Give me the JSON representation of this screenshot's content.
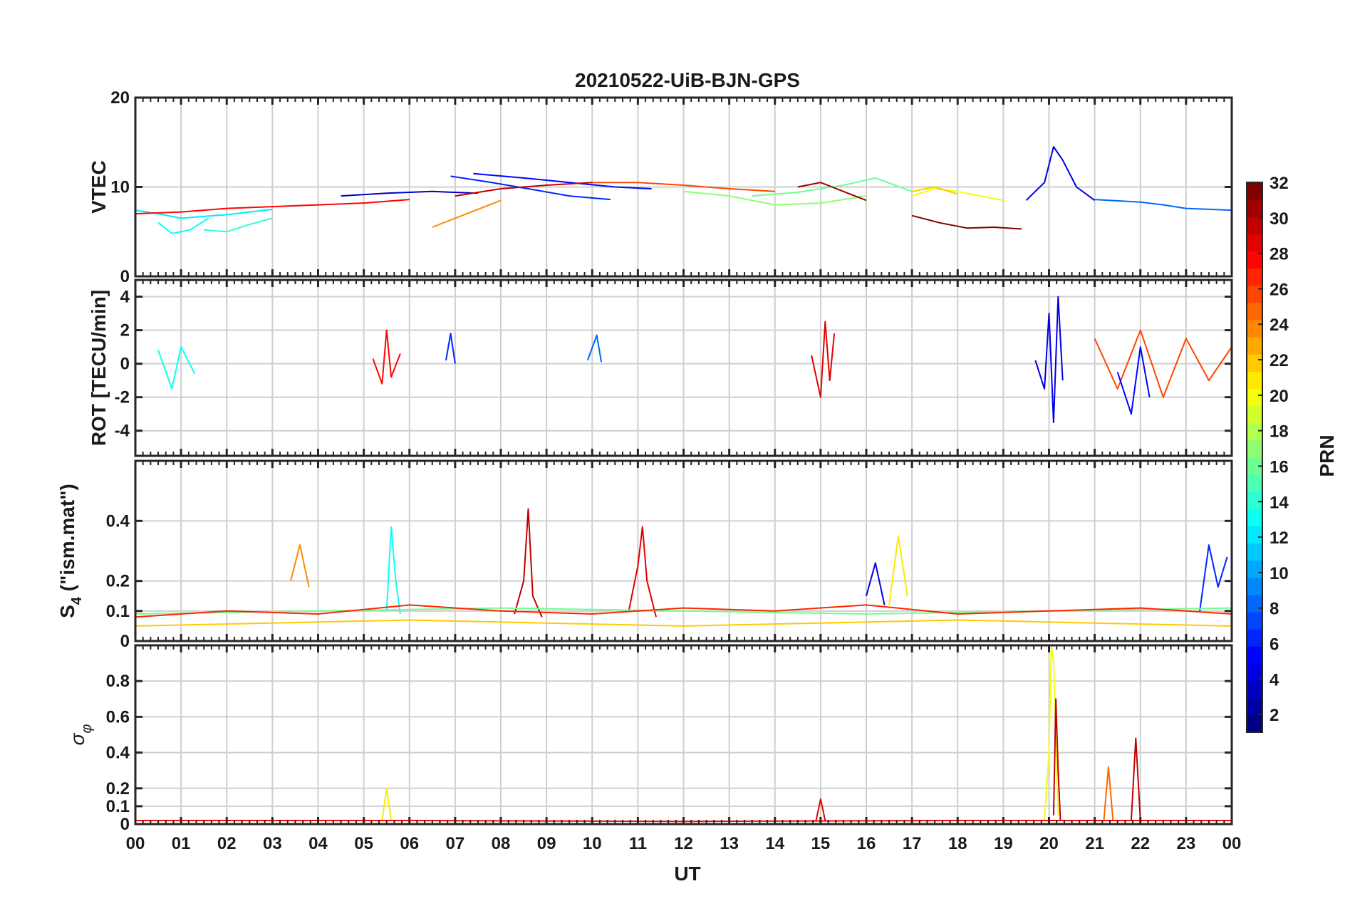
{
  "chart_data": [
    {
      "type": "line",
      "panel": "vtec",
      "title": "20210522-UiB-BJN-GPS",
      "ylabel": "VTEC",
      "ylim": [
        0,
        20
      ],
      "yticks": [
        {
          "v": 0,
          "label": "0"
        },
        {
          "v": 10,
          "label": "10"
        },
        {
          "v": 20,
          "label": "20"
        }
      ],
      "series": [
        {
          "prn": 3,
          "x": [
            4.5,
            5.5,
            6.5,
            7.5
          ],
          "y": [
            9.0,
            9.3,
            9.5,
            9.3
          ]
        },
        {
          "prn": 5,
          "x": [
            7.4,
            8.5,
            9.5,
            10.5,
            11.3
          ],
          "y": [
            11.5,
            11.0,
            10.5,
            10.0,
            9.8
          ]
        },
        {
          "prn": 6,
          "x": [
            6.9,
            7.8,
            8.6,
            9.5,
            10.4
          ],
          "y": [
            11.2,
            10.5,
            9.8,
            9.0,
            8.6
          ]
        },
        {
          "prn": 4,
          "x": [
            19.5,
            19.9,
            20.1,
            20.3,
            20.6,
            21.0
          ],
          "y": [
            8.5,
            10.5,
            14.5,
            13.0,
            10.0,
            8.5
          ]
        },
        {
          "prn": 8,
          "x": [
            21.0,
            22.0,
            22.5,
            23.0,
            24.0
          ],
          "y": [
            8.6,
            8.3,
            8.0,
            7.6,
            7.4
          ]
        },
        {
          "prn": 12,
          "x": [
            0.0,
            0.5,
            1.0,
            2.0,
            3.0
          ],
          "y": [
            7.4,
            7.0,
            6.5,
            6.9,
            7.5
          ]
        },
        {
          "prn": 13,
          "x": [
            0.5,
            0.8,
            1.2,
            1.6
          ],
          "y": [
            6.0,
            4.8,
            5.2,
            6.5
          ]
        },
        {
          "prn": 14,
          "x": [
            1.5,
            2.0,
            2.5,
            3.0
          ],
          "y": [
            5.2,
            5.0,
            5.8,
            6.5
          ]
        },
        {
          "prn": 16,
          "x": [
            13.5,
            14.5,
            15.5,
            16.2,
            17.0
          ],
          "y": [
            9.0,
            9.4,
            10.2,
            11.0,
            9.5
          ]
        },
        {
          "prn": 17,
          "x": [
            12.0,
            13.0,
            14.0,
            15.0,
            16.0
          ],
          "y": [
            9.5,
            9.0,
            8.0,
            8.2,
            9.0
          ]
        },
        {
          "prn": 20,
          "x": [
            17.0,
            17.5,
            18.0,
            18.5,
            19.0
          ],
          "y": [
            9.0,
            9.8,
            9.5,
            9.0,
            8.5
          ]
        },
        {
          "prn": 22,
          "x": [
            17.0,
            17.5,
            18.0
          ],
          "y": [
            9.5,
            10.0,
            9.2
          ]
        },
        {
          "prn": 24,
          "x": [
            6.5,
            7.0,
            7.5,
            8.0
          ],
          "y": [
            5.5,
            6.5,
            7.5,
            8.5
          ]
        },
        {
          "prn": 26,
          "x": [
            10.0,
            11.0,
            12.0,
            13.0,
            14.0
          ],
          "y": [
            10.5,
            10.5,
            10.2,
            9.8,
            9.5
          ]
        },
        {
          "prn": 28,
          "x": [
            0.0,
            1.0,
            2.0,
            3.0,
            4.0,
            5.0,
            6.0
          ],
          "y": [
            7.0,
            7.2,
            7.6,
            7.8,
            8.0,
            8.2,
            8.6
          ]
        },
        {
          "prn": 30,
          "x": [
            7.0,
            8.0,
            9.0,
            10.0
          ],
          "y": [
            9.0,
            9.8,
            10.2,
            10.5
          ]
        },
        {
          "prn": 31,
          "x": [
            14.5,
            15.0,
            15.5,
            16.0
          ],
          "y": [
            10.0,
            10.5,
            9.5,
            8.5
          ]
        },
        {
          "prn": 32,
          "x": [
            17.0,
            17.6,
            18.2,
            18.8,
            19.4
          ],
          "y": [
            6.8,
            6.0,
            5.4,
            5.5,
            5.3
          ]
        }
      ]
    },
    {
      "type": "line",
      "panel": "rot",
      "ylabel": "ROT [TECU/min]",
      "ylim": [
        -5.5,
        5
      ],
      "yticks": [
        {
          "v": -4,
          "label": "-4"
        },
        {
          "v": -2,
          "label": "-2"
        },
        {
          "v": 0,
          "label": "0"
        },
        {
          "v": 2,
          "label": "2"
        },
        {
          "v": 4,
          "label": "4"
        }
      ],
      "series": [
        {
          "prn": 4,
          "x": [
            19.7,
            19.9,
            20.0,
            20.1,
            20.2,
            20.3
          ],
          "y": [
            0.2,
            -1.5,
            3.0,
            -3.5,
            4.0,
            -1.0
          ]
        },
        {
          "prn": 28,
          "x": [
            5.2,
            5.4,
            5.5,
            5.6,
            5.8
          ],
          "y": [
            0.3,
            -1.2,
            2.0,
            -0.8,
            0.6
          ]
        },
        {
          "prn": 6,
          "x": [
            6.8,
            6.9,
            7.0
          ],
          "y": [
            0.2,
            1.8,
            0.0
          ]
        },
        {
          "prn": 8,
          "x": [
            9.9,
            10.1,
            10.2
          ],
          "y": [
            0.2,
            1.7,
            0.1
          ]
        },
        {
          "prn": 29,
          "x": [
            14.8,
            15.0,
            15.1,
            15.2,
            15.3
          ],
          "y": [
            0.5,
            -2.0,
            2.5,
            -1.0,
            1.8
          ]
        },
        {
          "prn": 26,
          "x": [
            21.0,
            21.5,
            22.0,
            22.5,
            23.0,
            23.5,
            24.0
          ],
          "y": [
            1.5,
            -1.5,
            2.0,
            -2.0,
            1.5,
            -1.0,
            1.0
          ]
        },
        {
          "prn": 5,
          "x": [
            21.5,
            21.8,
            22.0,
            22.2
          ],
          "y": [
            -0.5,
            -3.0,
            1.0,
            -2.0
          ]
        },
        {
          "prn": 13,
          "x": [
            0.5,
            0.8,
            1.0,
            1.3
          ],
          "y": [
            0.8,
            -1.5,
            1.0,
            -0.6
          ]
        }
      ]
    },
    {
      "type": "line",
      "panel": "s4",
      "ylabel": "S4 (\"ism.mat\")",
      "ylabel_main": "S",
      "ylabel_sub": "4",
      "ylabel_rest": " (\"ism.mat\")",
      "ylim": [
        0,
        0.6
      ],
      "yticks": [
        {
          "v": 0,
          "label": "0"
        },
        {
          "v": 0.1,
          "label": "0.1"
        },
        {
          "v": 0.2,
          "label": "0.2"
        },
        {
          "v": 0.4,
          "label": "0.4"
        }
      ],
      "series": [
        {
          "prn": 30,
          "x": [
            8.3,
            8.5,
            8.6,
            8.7,
            8.9
          ],
          "y": [
            0.09,
            0.2,
            0.44,
            0.15,
            0.08
          ]
        },
        {
          "prn": 29,
          "x": [
            10.8,
            11.0,
            11.1,
            11.2,
            11.4
          ],
          "y": [
            0.1,
            0.25,
            0.38,
            0.2,
            0.08
          ]
        },
        {
          "prn": 13,
          "x": [
            5.5,
            5.6,
            5.7,
            5.8
          ],
          "y": [
            0.1,
            0.38,
            0.2,
            0.09
          ]
        },
        {
          "prn": 24,
          "x": [
            3.4,
            3.6,
            3.8
          ],
          "y": [
            0.2,
            0.32,
            0.18
          ]
        },
        {
          "prn": 21,
          "x": [
            16.5,
            16.7,
            16.9
          ],
          "y": [
            0.12,
            0.35,
            0.15
          ]
        },
        {
          "prn": 6,
          "x": [
            23.3,
            23.5,
            23.7,
            23.9
          ],
          "y": [
            0.1,
            0.32,
            0.18,
            0.28
          ]
        },
        {
          "prn": 4,
          "x": [
            16.0,
            16.2,
            16.4
          ],
          "y": [
            0.15,
            0.26,
            0.12
          ]
        },
        {
          "prn": 22,
          "x": [
            0.0,
            3.0,
            6.0,
            9.0,
            12.0,
            15.0,
            18.0,
            21.0,
            24.0
          ],
          "y": [
            0.05,
            0.06,
            0.07,
            0.06,
            0.05,
            0.06,
            0.07,
            0.06,
            0.05
          ]
        },
        {
          "prn": 16,
          "x": [
            0.0,
            4.0,
            8.0,
            12.0,
            16.0,
            20.0,
            24.0
          ],
          "y": [
            0.09,
            0.1,
            0.11,
            0.1,
            0.09,
            0.1,
            0.11
          ]
        },
        {
          "prn": 27,
          "x": [
            0.0,
            2.0,
            4.0,
            6.0,
            8.0,
            10.0,
            12.0,
            14.0,
            16.0,
            18.0,
            20.0,
            22.0,
            24.0
          ],
          "y": [
            0.08,
            0.1,
            0.09,
            0.12,
            0.1,
            0.09,
            0.11,
            0.1,
            0.12,
            0.09,
            0.1,
            0.11,
            0.09
          ]
        }
      ]
    },
    {
      "type": "line",
      "panel": "sigma_phi",
      "ylabel": "σφ",
      "ylabel_main": "σ",
      "ylabel_sub": "φ",
      "ylim": [
        0,
        1
      ],
      "yticks": [
        {
          "v": 0,
          "label": "0"
        },
        {
          "v": 0.1,
          "label": "0.1"
        },
        {
          "v": 0.2,
          "label": "0.2"
        },
        {
          "v": 0.4,
          "label": "0.4"
        },
        {
          "v": 0.6,
          "label": "0.6"
        },
        {
          "v": 0.8,
          "label": "0.8"
        }
      ],
      "series": [
        {
          "prn": 20,
          "x": [
            19.9,
            20.0,
            20.05,
            20.1,
            20.2
          ],
          "y": [
            0.02,
            0.4,
            1.0,
            0.9,
            0.05
          ]
        },
        {
          "prn": 30,
          "x": [
            20.1,
            20.15,
            20.2,
            20.25
          ],
          "y": [
            0.05,
            0.7,
            0.3,
            0.02
          ]
        },
        {
          "prn": 25,
          "x": [
            21.2,
            21.3,
            21.4
          ],
          "y": [
            0.02,
            0.32,
            0.02
          ]
        },
        {
          "prn": 30,
          "x": [
            21.8,
            21.9,
            22.0
          ],
          "y": [
            0.02,
            0.48,
            0.02
          ]
        },
        {
          "prn": 21,
          "x": [
            5.4,
            5.5,
            5.6
          ],
          "y": [
            0.02,
            0.2,
            0.02
          ]
        },
        {
          "prn": 29,
          "x": [
            14.9,
            15.0,
            15.1
          ],
          "y": [
            0.02,
            0.14,
            0.02
          ]
        },
        {
          "prn": 28,
          "x": [
            0.0,
            6.0,
            12.0,
            18.0,
            24.0
          ],
          "y": [
            0.02,
            0.02,
            0.015,
            0.02,
            0.02
          ]
        }
      ]
    }
  ],
  "xaxis": {
    "label": "UT",
    "range": [
      0,
      24
    ],
    "ticks": [
      {
        "v": 0,
        "label": "00"
      },
      {
        "v": 1,
        "label": "01"
      },
      {
        "v": 2,
        "label": "02"
      },
      {
        "v": 3,
        "label": "03"
      },
      {
        "v": 4,
        "label": "04"
      },
      {
        "v": 5,
        "label": "05"
      },
      {
        "v": 6,
        "label": "06"
      },
      {
        "v": 7,
        "label": "07"
      },
      {
        "v": 8,
        "label": "08"
      },
      {
        "v": 9,
        "label": "09"
      },
      {
        "v": 10,
        "label": "10"
      },
      {
        "v": 11,
        "label": "11"
      },
      {
        "v": 12,
        "label": "12"
      },
      {
        "v": 13,
        "label": "13"
      },
      {
        "v": 14,
        "label": "14"
      },
      {
        "v": 15,
        "label": "15"
      },
      {
        "v": 16,
        "label": "16"
      },
      {
        "v": 17,
        "label": "17"
      },
      {
        "v": 18,
        "label": "18"
      },
      {
        "v": 19,
        "label": "19"
      },
      {
        "v": 20,
        "label": "20"
      },
      {
        "v": 21,
        "label": "21"
      },
      {
        "v": 22,
        "label": "22"
      },
      {
        "v": 23,
        "label": "23"
      },
      {
        "v": 24,
        "label": "00"
      }
    ]
  },
  "colorbar": {
    "label": "PRN",
    "range": [
      1,
      32
    ],
    "colormap": "jet",
    "ticks": [
      {
        "v": 2,
        "label": "2"
      },
      {
        "v": 4,
        "label": "4"
      },
      {
        "v": 6,
        "label": "6"
      },
      {
        "v": 8,
        "label": "8"
      },
      {
        "v": 10,
        "label": "10"
      },
      {
        "v": 12,
        "label": "12"
      },
      {
        "v": 14,
        "label": "14"
      },
      {
        "v": 16,
        "label": "16"
      },
      {
        "v": 18,
        "label": "18"
      },
      {
        "v": 20,
        "label": "20"
      },
      {
        "v": 22,
        "label": "22"
      },
      {
        "v": 24,
        "label": "24"
      },
      {
        "v": 26,
        "label": "26"
      },
      {
        "v": 28,
        "label": "28"
      },
      {
        "v": 30,
        "label": "30"
      },
      {
        "v": 32,
        "label": "32"
      }
    ]
  }
}
